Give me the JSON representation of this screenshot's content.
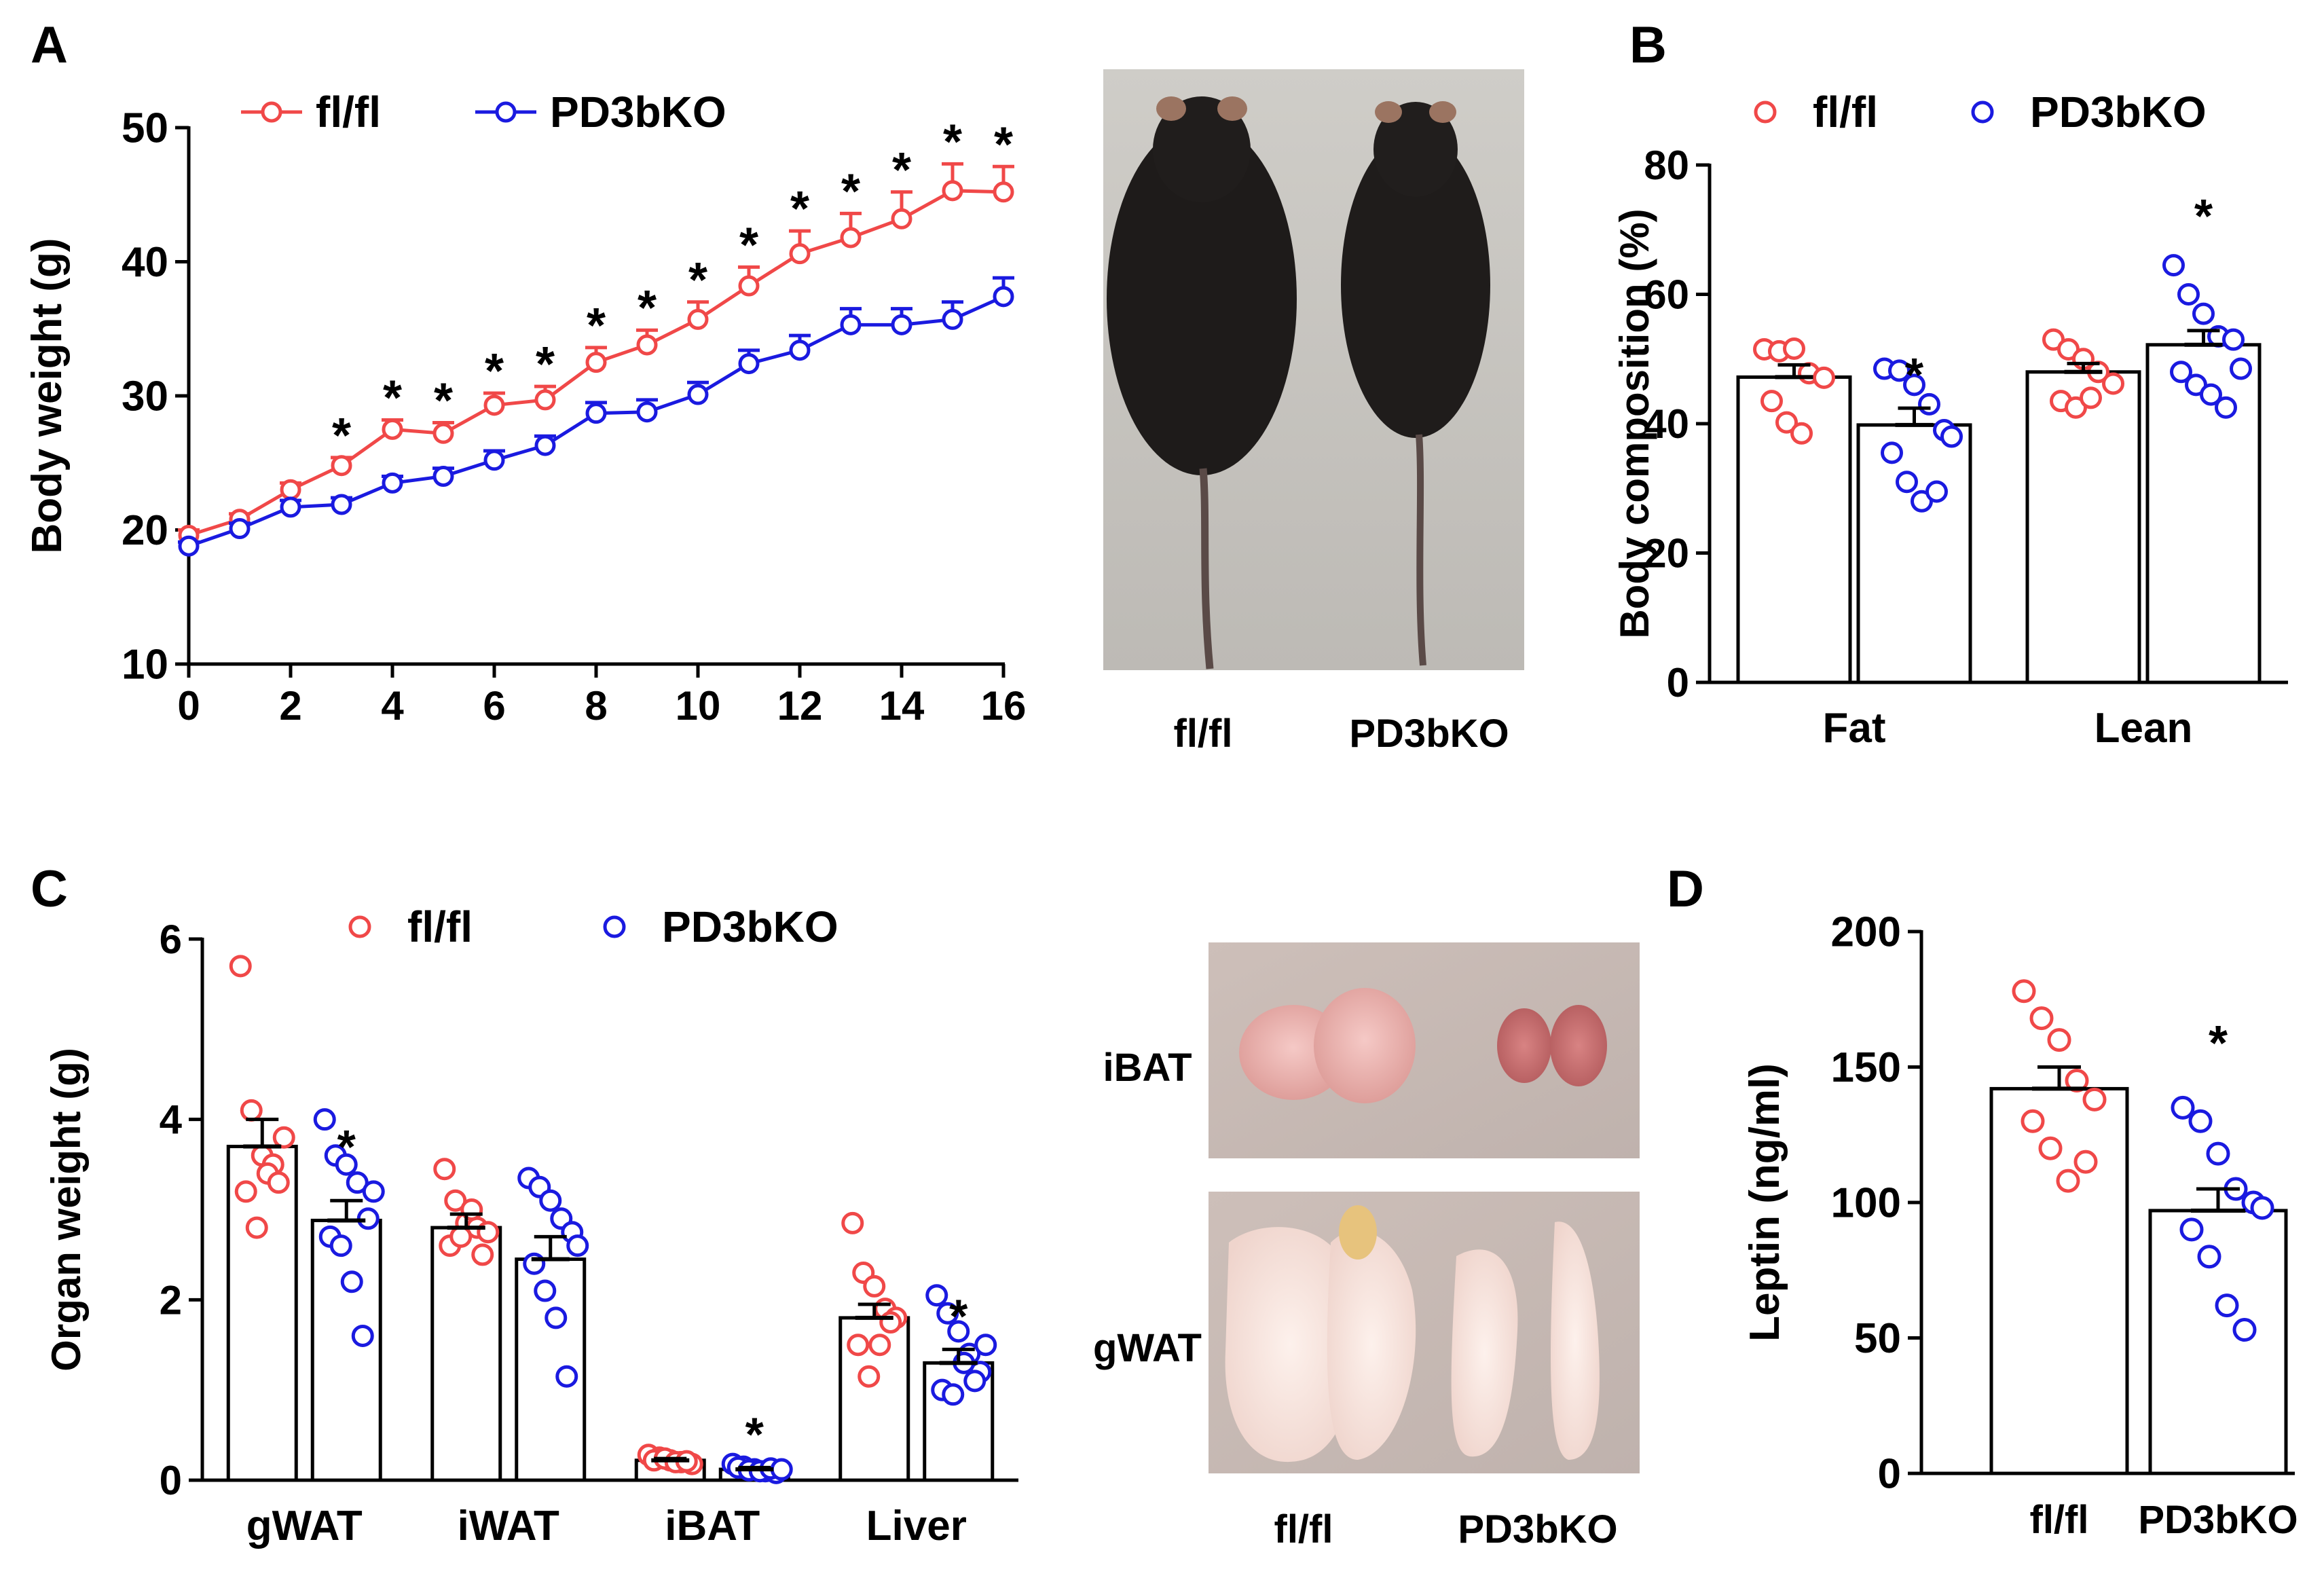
{
  "colors": {
    "flfl": "#f04848",
    "ko": "#1a1ae0",
    "axis": "#000000",
    "background": "#ffffff"
  },
  "panels": {
    "A": {
      "label": "A"
    },
    "B": {
      "label": "B"
    },
    "C": {
      "label": "C"
    },
    "D": {
      "label": "D"
    }
  },
  "photos": {
    "mouse": {
      "labels": [
        "fl/fl",
        "PD3bKO"
      ]
    },
    "tissue": {
      "row_labels": [
        "iBAT",
        "gWAT"
      ],
      "labels": [
        "fl/fl",
        "PD3bKO"
      ]
    }
  },
  "chart_data": [
    {
      "id": "A",
      "type": "line",
      "ylabel": "Body weight (g)",
      "xlabel": "",
      "ylim": [
        10,
        50
      ],
      "yticks": [
        10,
        20,
        30,
        40,
        50
      ],
      "xlim": [
        0,
        16
      ],
      "xticks": [
        0,
        2,
        4,
        6,
        8,
        10,
        12,
        14,
        16
      ],
      "legend": "top-left",
      "x": [
        0,
        1,
        2,
        3,
        4,
        5,
        6,
        7,
        8,
        9,
        10,
        11,
        12,
        13,
        14,
        15,
        16
      ],
      "series": [
        {
          "name": "fl/fl",
          "color_key": "flfl",
          "values": [
            19.6,
            20.8,
            23.0,
            24.8,
            27.5,
            27.2,
            29.3,
            29.7,
            32.5,
            33.8,
            35.7,
            38.2,
            40.6,
            41.8,
            43.2,
            45.3,
            45.2
          ],
          "errors": [
            0.4,
            0.4,
            0.5,
            0.6,
            0.7,
            0.8,
            0.9,
            1.0,
            1.1,
            1.1,
            1.3,
            1.4,
            1.7,
            1.8,
            2.0,
            2.0,
            1.9
          ]
        },
        {
          "name": "PD3bKO",
          "color_key": "ko",
          "values": [
            18.8,
            20.1,
            21.7,
            21.9,
            23.5,
            24.0,
            25.2,
            26.3,
            28.7,
            28.8,
            30.1,
            32.4,
            33.4,
            35.3,
            35.3,
            35.7,
            37.4
          ],
          "errors": [
            0.3,
            0.4,
            0.5,
            0.5,
            0.5,
            0.6,
            0.7,
            0.7,
            0.8,
            0.9,
            0.9,
            1.0,
            1.1,
            1.2,
            1.2,
            1.3,
            1.4
          ]
        }
      ],
      "significant": "* from x = 3 to 16"
    },
    {
      "id": "B",
      "type": "bar",
      "ylabel": "Body composition (%)",
      "ylim": [
        0,
        80
      ],
      "yticks": [
        0,
        20,
        40,
        60,
        80
      ],
      "categories": [
        "Fat",
        "Lean"
      ],
      "legend": "top",
      "series": [
        {
          "name": "fl/fl",
          "color_key": "flfl",
          "values": [
            47.2,
            48.0
          ],
          "errors": [
            1.9,
            1.3
          ],
          "points": [
            [
              51.5,
              51.2,
              51.6,
              47.8,
              47.1,
              43.5,
              40.2,
              38.5
            ],
            [
              53.0,
              51.5,
              50.0,
              48.0,
              46.2,
              43.5,
              42.5,
              44.0
            ]
          ]
        },
        {
          "name": "PD3bKO",
          "color_key": "ko",
          "values": [
            39.8,
            52.2
          ],
          "errors": [
            2.6,
            2.2
          ],
          "points": [
            [
              48.5,
              48.2,
              46.0,
              43.0,
              39.0,
              35.5,
              31.0,
              28.0,
              29.5,
              38.0
            ],
            [
              64.5,
              60.0,
              57.0,
              53.5,
              53.0,
              48.0,
              46.0,
              44.5,
              42.5,
              48.5
            ]
          ]
        }
      ],
      "significant": [
        "*",
        "*"
      ]
    },
    {
      "id": "C",
      "type": "bar",
      "ylabel": "Organ weight (g)",
      "ylim": [
        0,
        6
      ],
      "yticks": [
        0,
        2,
        4,
        6
      ],
      "categories": [
        "gWAT",
        "iWAT",
        "iBAT",
        "Liver"
      ],
      "legend": "top",
      "series": [
        {
          "name": "fl/fl",
          "color_key": "flfl",
          "values": [
            3.7,
            2.8,
            0.22,
            1.8
          ],
          "errors": [
            0.3,
            0.15,
            0.02,
            0.15
          ],
          "points": [
            [
              5.7,
              4.1,
              3.6,
              3.5,
              3.8,
              3.2,
              2.8,
              3.4,
              3.3
            ],
            [
              3.45,
              3.1,
              2.85,
              2.8,
              2.75,
              2.6,
              2.7,
              3.0,
              2.5
            ],
            [
              0.28,
              0.25,
              0.22,
              0.2,
              0.18,
              0.22,
              0.24,
              0.2,
              0.21
            ],
            [
              2.85,
              2.3,
              2.15,
              1.9,
              1.8,
              1.5,
              1.15,
              1.5,
              1.75
            ]
          ]
        },
        {
          "name": "PD3bKO",
          "color_key": "ko",
          "values": [
            2.88,
            2.45,
            0.12,
            1.3
          ],
          "errors": [
            0.22,
            0.25,
            0.02,
            0.15
          ],
          "points": [
            [
              4.0,
              3.6,
              3.5,
              3.3,
              2.9,
              2.7,
              2.6,
              2.2,
              1.6,
              3.2
            ],
            [
              3.35,
              3.25,
              3.1,
              2.9,
              2.75,
              2.4,
              2.1,
              1.8,
              1.15,
              2.6
            ],
            [
              0.18,
              0.15,
              0.12,
              0.1,
              0.08,
              0.14,
              0.11,
              0.1,
              0.13,
              0.12
            ],
            [
              2.05,
              1.85,
              1.65,
              1.4,
              1.2,
              1.0,
              0.95,
              1.3,
              1.1,
              1.5
            ]
          ]
        }
      ],
      "significant": [
        "*",
        "",
        "*",
        "*"
      ]
    },
    {
      "id": "D",
      "type": "bar",
      "ylabel": "Leptin (ng/ml)",
      "ylim": [
        0,
        200
      ],
      "yticks": [
        0,
        50,
        100,
        150,
        200
      ],
      "categories": [
        "fl/fl",
        "PD3bKO"
      ],
      "values": [
        142,
        97
      ],
      "errors": [
        8,
        8
      ],
      "color_keys": [
        "flfl",
        "ko"
      ],
      "points": [
        [
          178,
          168,
          160,
          145,
          138,
          130,
          120,
          108,
          115
        ],
        [
          135,
          130,
          118,
          105,
          100,
          90,
          80,
          62,
          53,
          98
        ]
      ],
      "significant": [
        "",
        "*"
      ]
    }
  ]
}
